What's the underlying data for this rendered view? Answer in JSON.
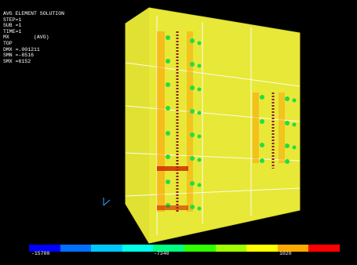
{
  "result_header": {
    "title": "AVG ELEMENT SOLUTION",
    "step": "STEP=1",
    "sub": "SUB =1",
    "time": "TIME=1",
    "component": "MX        (AVG)",
    "layer": "TOP",
    "dmx": "DMX =.001211",
    "smn": "SMN =-8516",
    "smx": "SMX =6152"
  },
  "colorbar": {
    "colors": [
      "#0000ff",
      "#0070ff",
      "#00c8ff",
      "#00ffe8",
      "#00ff80",
      "#30ff00",
      "#a0ff00",
      "#ffff00",
      "#ffaa00",
      "#ff0000"
    ],
    "ticks": [
      "-15700",
      "",
      "-7340",
      "",
      "1020",
      ""
    ]
  },
  "plate": {
    "fill": "#e8e838"
  }
}
